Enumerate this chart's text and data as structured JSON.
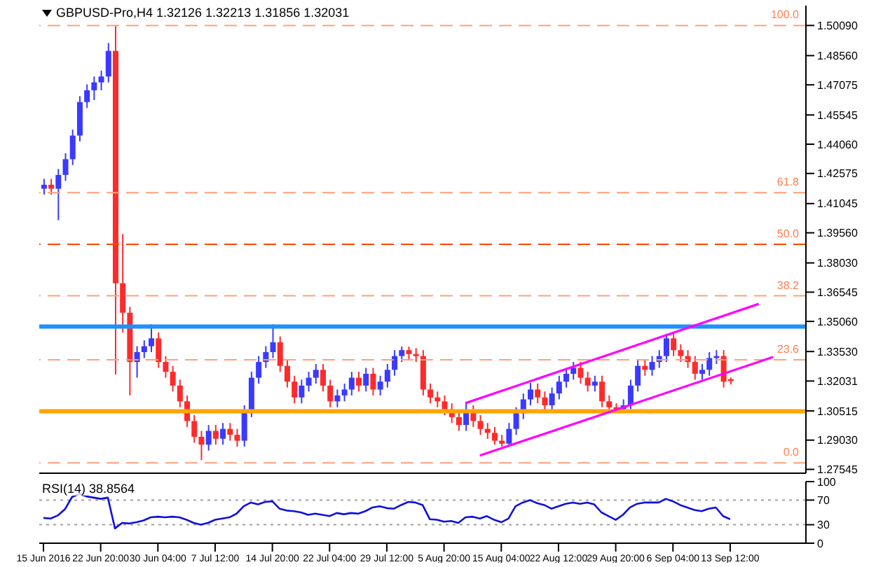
{
  "chart_data": [
    {
      "type": "candlestick",
      "title": "GBPUSD-Pro,H4 1.32126 1.32213 1.31856 1.32031",
      "tick_labels": "y",
      "marker": "none",
      "categories": [
        null,
        null,
        null,
        null,
        null,
        null,
        null,
        null,
        null,
        null,
        null,
        null,
        null,
        null,
        null,
        null,
        null,
        null,
        null,
        null,
        null,
        null,
        null,
        null,
        null,
        null,
        null,
        null,
        null,
        null,
        null,
        null,
        null,
        null,
        null,
        null,
        null,
        null,
        null,
        null,
        null,
        null,
        null,
        null,
        null,
        null,
        null,
        null,
        null,
        null,
        null,
        null,
        null,
        null,
        null,
        null,
        null,
        null,
        null,
        null,
        null,
        null,
        null,
        null,
        null,
        null,
        null,
        null,
        null,
        null,
        null,
        null,
        null,
        null,
        null,
        null,
        null,
        null,
        null,
        null,
        null,
        null,
        null,
        null,
        null,
        null,
        null,
        null,
        null,
        null,
        null,
        null,
        null,
        null,
        null,
        null,
        null,
        null,
        null,
        null,
        null,
        null,
        null,
        null,
        null,
        null,
        null
      ],
      "ohlc": [
        [
          1.418,
          1.423,
          1.415,
          1.42
        ],
        [
          1.42,
          1.423,
          1.415,
          1.418
        ],
        [
          1.418,
          1.428,
          1.402,
          1.425
        ],
        [
          1.425,
          1.436,
          1.422,
          1.433
        ],
        [
          1.433,
          1.448,
          1.43,
          1.445
        ],
        [
          1.445,
          1.465,
          1.442,
          1.462
        ],
        [
          1.462,
          1.471,
          1.459,
          1.468
        ],
        [
          1.468,
          1.475,
          1.463,
          1.472
        ],
        [
          1.472,
          1.478,
          1.468,
          1.475
        ],
        [
          1.475,
          1.492,
          1.472,
          1.488
        ],
        [
          1.488,
          1.5009,
          1.3236,
          1.37
        ],
        [
          1.37,
          1.395,
          1.345,
          1.355
        ],
        [
          1.355,
          1.358,
          1.313,
          1.33
        ],
        [
          1.33,
          1.338,
          1.322,
          1.335
        ],
        [
          1.335,
          1.341,
          1.332,
          1.338
        ],
        [
          1.338,
          1.3491,
          1.335,
          1.342
        ],
        [
          1.342,
          1.345,
          1.327,
          1.33
        ],
        [
          1.33,
          1.333,
          1.322,
          1.325
        ],
        [
          1.325,
          1.328,
          1.315,
          1.318
        ],
        [
          1.318,
          1.321,
          1.307,
          1.31
        ],
        [
          1.31,
          1.313,
          1.297,
          1.3
        ],
        [
          1.3,
          1.303,
          1.289,
          1.292
        ],
        [
          1.292,
          1.295,
          1.2801,
          1.288
        ],
        [
          1.288,
          1.298,
          1.285,
          1.295
        ],
        [
          1.295,
          1.298,
          1.288,
          1.291
        ],
        [
          1.291,
          1.299,
          1.288,
          1.296
        ],
        [
          1.296,
          1.299,
          1.29,
          1.293
        ],
        [
          1.293,
          1.296,
          1.287,
          1.29
        ],
        [
          1.29,
          1.308,
          1.287,
          1.305
        ],
        [
          1.305,
          1.325,
          1.302,
          1.322
        ],
        [
          1.322,
          1.333,
          1.319,
          1.33
        ],
        [
          1.33,
          1.338,
          1.327,
          1.335
        ],
        [
          1.335,
          1.3491,
          1.332,
          1.34
        ],
        [
          1.34,
          1.343,
          1.325,
          1.328
        ],
        [
          1.328,
          1.331,
          1.317,
          1.32
        ],
        [
          1.32,
          1.323,
          1.309,
          1.312
        ],
        [
          1.312,
          1.321,
          1.309,
          1.318
        ],
        [
          1.318,
          1.325,
          1.315,
          1.322
        ],
        [
          1.322,
          1.329,
          1.319,
          1.326
        ],
        [
          1.326,
          1.329,
          1.315,
          1.318
        ],
        [
          1.318,
          1.321,
          1.307,
          1.31
        ],
        [
          1.31,
          1.316,
          1.307,
          1.313
        ],
        [
          1.313,
          1.319,
          1.31,
          1.316
        ],
        [
          1.316,
          1.325,
          1.313,
          1.322
        ],
        [
          1.322,
          1.325,
          1.315,
          1.318
        ],
        [
          1.318,
          1.327,
          1.315,
          1.324
        ],
        [
          1.324,
          1.327,
          1.313,
          1.316
        ],
        [
          1.316,
          1.323,
          1.313,
          1.32
        ],
        [
          1.32,
          1.329,
          1.317,
          1.326
        ],
        [
          1.326,
          1.336,
          1.323,
          1.333
        ],
        [
          1.333,
          1.3378,
          1.33,
          1.336
        ],
        [
          1.336,
          1.3378,
          1.331,
          1.334
        ],
        [
          1.334,
          1.337,
          1.33,
          1.333
        ],
        [
          1.333,
          1.336,
          1.313,
          1.316
        ],
        [
          1.316,
          1.319,
          1.309,
          1.312
        ],
        [
          1.312,
          1.315,
          1.307,
          1.31
        ],
        [
          1.31,
          1.313,
          1.303,
          1.306
        ],
        [
          1.306,
          1.309,
          1.299,
          1.302
        ],
        [
          1.302,
          1.305,
          1.295,
          1.298
        ],
        [
          1.298,
          1.3091,
          1.295,
          1.305
        ],
        [
          1.305,
          1.308,
          1.297,
          1.3
        ],
        [
          1.3,
          1.303,
          1.293,
          1.296
        ],
        [
          1.296,
          1.299,
          1.291,
          1.294
        ],
        [
          1.294,
          1.297,
          1.288,
          1.29
        ],
        [
          1.29,
          1.293,
          1.287,
          1.2885
        ],
        [
          1.2885,
          1.299,
          1.287,
          1.296
        ],
        [
          1.296,
          1.307,
          1.293,
          1.304
        ],
        [
          1.304,
          1.314,
          1.301,
          1.311
        ],
        [
          1.311,
          1.3194,
          1.308,
          1.316
        ],
        [
          1.316,
          1.319,
          1.309,
          1.312
        ],
        [
          1.312,
          1.315,
          1.305,
          1.308
        ],
        [
          1.308,
          1.317,
          1.305,
          1.314
        ],
        [
          1.314,
          1.323,
          1.311,
          1.32
        ],
        [
          1.32,
          1.327,
          1.317,
          1.324
        ],
        [
          1.324,
          1.33,
          1.321,
          1.327
        ],
        [
          1.327,
          1.33,
          1.319,
          1.322
        ],
        [
          1.322,
          1.325,
          1.315,
          1.318
        ],
        [
          1.318,
          1.323,
          1.315,
          1.32
        ],
        [
          1.32,
          1.323,
          1.307,
          1.31
        ],
        [
          1.31,
          1.313,
          1.305,
          1.307
        ],
        [
          1.307,
          1.309,
          1.305,
          1.306
        ],
        [
          1.306,
          1.311,
          1.305,
          1.308
        ],
        [
          1.308,
          1.321,
          1.306,
          1.318
        ],
        [
          1.318,
          1.331,
          1.315,
          1.328
        ],
        [
          1.328,
          1.331,
          1.323,
          1.326
        ],
        [
          1.326,
          1.333,
          1.323,
          1.33
        ],
        [
          1.33,
          1.336,
          1.327,
          1.333
        ],
        [
          1.333,
          1.3443,
          1.33,
          1.342
        ],
        [
          1.342,
          1.3443,
          1.333,
          1.336
        ],
        [
          1.336,
          1.339,
          1.33,
          1.333
        ],
        [
          1.333,
          1.336,
          1.327,
          1.33
        ],
        [
          1.33,
          1.333,
          1.321,
          1.324
        ],
        [
          1.324,
          1.329,
          1.321,
          1.326
        ],
        [
          1.326,
          1.335,
          1.323,
          1.332
        ],
        [
          1.332,
          1.336,
          1.329,
          1.333
        ],
        [
          1.333,
          1.336,
          1.317,
          1.32
        ],
        [
          1.32126,
          1.32213,
          1.31856,
          1.32031
        ],
        null,
        null,
        null,
        null,
        null,
        null,
        null,
        null,
        null,
        null
      ],
      "colors": [
        "#3a3aff",
        "#ff2a2a",
        "#3a3aff",
        "#3a3aff",
        "#3a3aff",
        "#3a3aff",
        "#3a3aff",
        "#3a3aff",
        "#3a3aff",
        "#3a3aff",
        "#ff2a2a",
        "#ff2a2a",
        "#ff2a2a",
        "#3a3aff",
        "#3a3aff",
        "#3a3aff",
        "#ff2a2a",
        "#ff2a2a",
        "#ff2a2a",
        "#ff2a2a",
        "#ff2a2a",
        "#ff2a2a",
        "#ff2a2a",
        "#3a3aff",
        "#ff2a2a",
        "#3a3aff",
        "#ff2a2a",
        "#ff2a2a",
        "#3a3aff",
        "#3a3aff",
        "#3a3aff",
        "#3a3aff",
        "#3a3aff",
        "#ff2a2a",
        "#ff2a2a",
        "#ff2a2a",
        "#3a3aff",
        "#3a3aff",
        "#3a3aff",
        "#ff2a2a",
        "#ff2a2a",
        "#3a3aff",
        "#3a3aff",
        "#3a3aff",
        "#ff2a2a",
        "#3a3aff",
        "#ff2a2a",
        "#3a3aff",
        "#3a3aff",
        "#3a3aff",
        "#3a3aff",
        "#ff2a2a",
        "#ff2a2a",
        "#ff2a2a",
        "#ff2a2a",
        "#ff2a2a",
        "#ff2a2a",
        "#ff2a2a",
        "#ff2a2a",
        "#3a3aff",
        "#ff2a2a",
        "#ff2a2a",
        "#ff2a2a",
        "#ff2a2a",
        "#ff2a2a",
        "#3a3aff",
        "#3a3aff",
        "#3a3aff",
        "#3a3aff",
        "#ff2a2a",
        "#ff2a2a",
        "#3a3aff",
        "#3a3aff",
        "#3a3aff",
        "#3a3aff",
        "#ff2a2a",
        "#ff2a2a",
        "#3a3aff",
        "#ff2a2a",
        "#ff2a2a",
        "#ff2a2a",
        "#3a3aff",
        "#3a3aff",
        "#3a3aff",
        "#ff2a2a",
        "#3a3aff",
        "#3a3aff",
        "#3a3aff",
        "#ff2a2a",
        "#ff2a2a",
        "#ff2a2a",
        "#ff2a2a",
        "#3a3aff",
        "#3a3aff",
        "#3a3aff",
        "#ff2a2a",
        "#ff2a2a",
        null,
        null,
        null,
        null,
        null,
        null,
        null,
        null,
        null,
        null
      ],
      "series": [
        {
          "type": "line",
          "color": "#ff00ff",
          "values": [
            null,
            null,
            null,
            null,
            null,
            null,
            null,
            null,
            null,
            null,
            null,
            null,
            null,
            null,
            null,
            null,
            null,
            null,
            null,
            null,
            null,
            null,
            null,
            null,
            null,
            null,
            null,
            null,
            null,
            null,
            null,
            null,
            null,
            null,
            null,
            null,
            null,
            null,
            null,
            null,
            null,
            null,
            null,
            null,
            null,
            null,
            null,
            null,
            null,
            null,
            null,
            null,
            null,
            null,
            null,
            null,
            null,
            null,
            null,
            1.3091,
            null,
            null,
            null,
            null,
            null,
            null,
            null,
            null,
            null,
            null,
            null,
            null,
            null,
            null,
            null,
            null,
            null,
            null,
            null,
            null,
            null,
            null,
            null,
            null,
            null,
            null,
            null,
            null,
            null,
            null,
            null,
            null,
            null,
            null,
            null,
            null,
            null,
            null,
            null,
            null,
            1.3595,
            null,
            null,
            null,
            null,
            null,
            null
          ]
        },
        {
          "type": "line",
          "color": "#ff00ff",
          "values": [
            null,
            null,
            null,
            null,
            null,
            null,
            null,
            null,
            null,
            null,
            null,
            null,
            null,
            null,
            null,
            null,
            null,
            null,
            null,
            null,
            null,
            null,
            null,
            null,
            null,
            null,
            null,
            null,
            null,
            null,
            null,
            null,
            null,
            null,
            null,
            null,
            null,
            null,
            null,
            null,
            null,
            null,
            null,
            null,
            null,
            null,
            null,
            null,
            null,
            null,
            null,
            null,
            null,
            null,
            null,
            null,
            null,
            null,
            null,
            null,
            null,
            1.2825,
            null,
            null,
            null,
            null,
            null,
            null,
            null,
            null,
            null,
            null,
            null,
            null,
            null,
            null,
            null,
            null,
            null,
            null,
            null,
            null,
            null,
            null,
            null,
            null,
            null,
            null,
            null,
            null,
            null,
            null,
            null,
            null,
            null,
            null,
            null,
            null,
            null,
            null,
            null,
            null,
            1.3325,
            null,
            null,
            null,
            null
          ]
        }
      ],
      "ylim": [
        1.2735,
        1.511
      ],
      "yticks": [
        {
          "value": 1.5009,
          "label": "1.50090"
        },
        {
          "value": 1.4856,
          "label": "1.48560"
        },
        {
          "value": 1.47075,
          "label": "1.47075"
        },
        {
          "value": 1.45545,
          "label": "1.45545"
        },
        {
          "value": 1.4406,
          "label": "1.44060"
        },
        {
          "value": 1.42575,
          "label": "1.42575"
        },
        {
          "value": 1.41045,
          "label": "1.41045"
        },
        {
          "value": 1.3956,
          "label": "1.39560"
        },
        {
          "value": 1.3803,
          "label": "1.38030"
        },
        {
          "value": 1.36545,
          "label": "1.36545"
        },
        {
          "value": 1.3506,
          "label": "1.35060"
        },
        {
          "value": 1.3353,
          "label": "1.33530"
        },
        {
          "value": 1.32031,
          "label": "1.32031"
        },
        {
          "value": 1.30515,
          "label": "1.30515"
        },
        {
          "value": 1.2903,
          "label": "1.29030"
        },
        {
          "value": 1.27545,
          "label": "1.27545"
        }
      ],
      "ref_lines": [
        {
          "axis": "y",
          "value": 1.5009,
          "color": "#ffa07a",
          "line_style": "dashed"
        },
        {
          "axis": "y",
          "value": 1.416,
          "color": "#ffa07a",
          "line_style": "dashed"
        },
        {
          "axis": "y",
          "value": 1.3898,
          "color": "#ff4500",
          "line_style": "dashed"
        },
        {
          "axis": "y",
          "value": 1.3636,
          "color": "#ffa07a",
          "line_style": "dashed"
        },
        {
          "axis": "y",
          "value": 1.3311,
          "color": "#ffa07a",
          "line_style": "dashed"
        },
        {
          "axis": "y",
          "value": 1.2787,
          "color": "#ffa07a",
          "line_style": "dashed"
        },
        {
          "axis": "y",
          "value": 1.348,
          "color": "#1e90ff",
          "line_style": "solid"
        },
        {
          "axis": "y",
          "value": 1.305,
          "color": "#ffa500",
          "line_style": "solid"
        }
      ],
      "annotations": [
        {
          "text": "100.0",
          "y": 1.5009
        },
        {
          "text": "61.8",
          "y": 1.416
        },
        {
          "text": "50.0",
          "y": 1.3898
        },
        {
          "text": "38.2",
          "y": 1.3636
        },
        {
          "text": "23.6",
          "y": 1.3311
        },
        {
          "text": "0.0",
          "y": 1.2787
        }
      ]
    },
    {
      "type": "line",
      "title": "RSI(14) 38.8564",
      "marker": "none",
      "categories": [
        "15 Jun 2016",
        null,
        null,
        null,
        null,
        null,
        null,
        null,
        "22 Jun 20:00",
        null,
        null,
        null,
        null,
        null,
        null,
        null,
        "30 Jun 04:00",
        null,
        null,
        null,
        null,
        null,
        null,
        null,
        "7 Jul 12:00",
        null,
        null,
        null,
        null,
        null,
        null,
        null,
        "14 Jul 20:00",
        null,
        null,
        null,
        null,
        null,
        null,
        null,
        "22 Jul 04:00",
        null,
        null,
        null,
        null,
        null,
        null,
        null,
        "29 Jul 12:00",
        null,
        null,
        null,
        null,
        null,
        null,
        null,
        "5 Aug 20:00",
        null,
        null,
        null,
        null,
        null,
        null,
        null,
        "15 Aug 04:00",
        null,
        null,
        null,
        null,
        null,
        null,
        null,
        "22 Aug 12:00",
        null,
        null,
        null,
        null,
        null,
        null,
        null,
        "29 Aug 20:00",
        null,
        null,
        null,
        null,
        null,
        null,
        null,
        "6 Sep 04:00",
        null,
        null,
        null,
        null,
        null,
        null,
        null,
        "13 Sep 12:00",
        null,
        null,
        null,
        null,
        null,
        null,
        null,
        null,
        null,
        null
      ],
      "series": [
        {
          "color": "#1010e0",
          "values": [
            41,
            40,
            45,
            55,
            75,
            80,
            76,
            74,
            72,
            74,
            24,
            33,
            32,
            34,
            37,
            42,
            43,
            42,
            43,
            42,
            38,
            33,
            30,
            33,
            38,
            40,
            42,
            48,
            60,
            66,
            63,
            67,
            68,
            56,
            53,
            52,
            50,
            46,
            48,
            46,
            44,
            49,
            47,
            49,
            48,
            52,
            58,
            60,
            57,
            56,
            62,
            67,
            66,
            62,
            39,
            38,
            35,
            36,
            33,
            42,
            43,
            40,
            44,
            38,
            34,
            40,
            60,
            66,
            70,
            65,
            62,
            56,
            60,
            64,
            66,
            64,
            66,
            63,
            50,
            44,
            38,
            46,
            58,
            64,
            66,
            66,
            66,
            72,
            68,
            62,
            58,
            54,
            52,
            56,
            58,
            44,
            38.8564,
            null,
            null,
            null,
            null,
            null,
            null,
            null,
            null,
            null,
            null
          ]
        }
      ],
      "ylim": [
        0,
        100
      ],
      "yticks": [
        100,
        70,
        30,
        0
      ],
      "ref_lines": [
        {
          "axis": "y",
          "value": 70,
          "color": "#a0a0a0",
          "line_style": "dotted"
        },
        {
          "axis": "y",
          "value": 30,
          "color": "#a0a0a0",
          "line_style": "dotted"
        }
      ]
    }
  ]
}
